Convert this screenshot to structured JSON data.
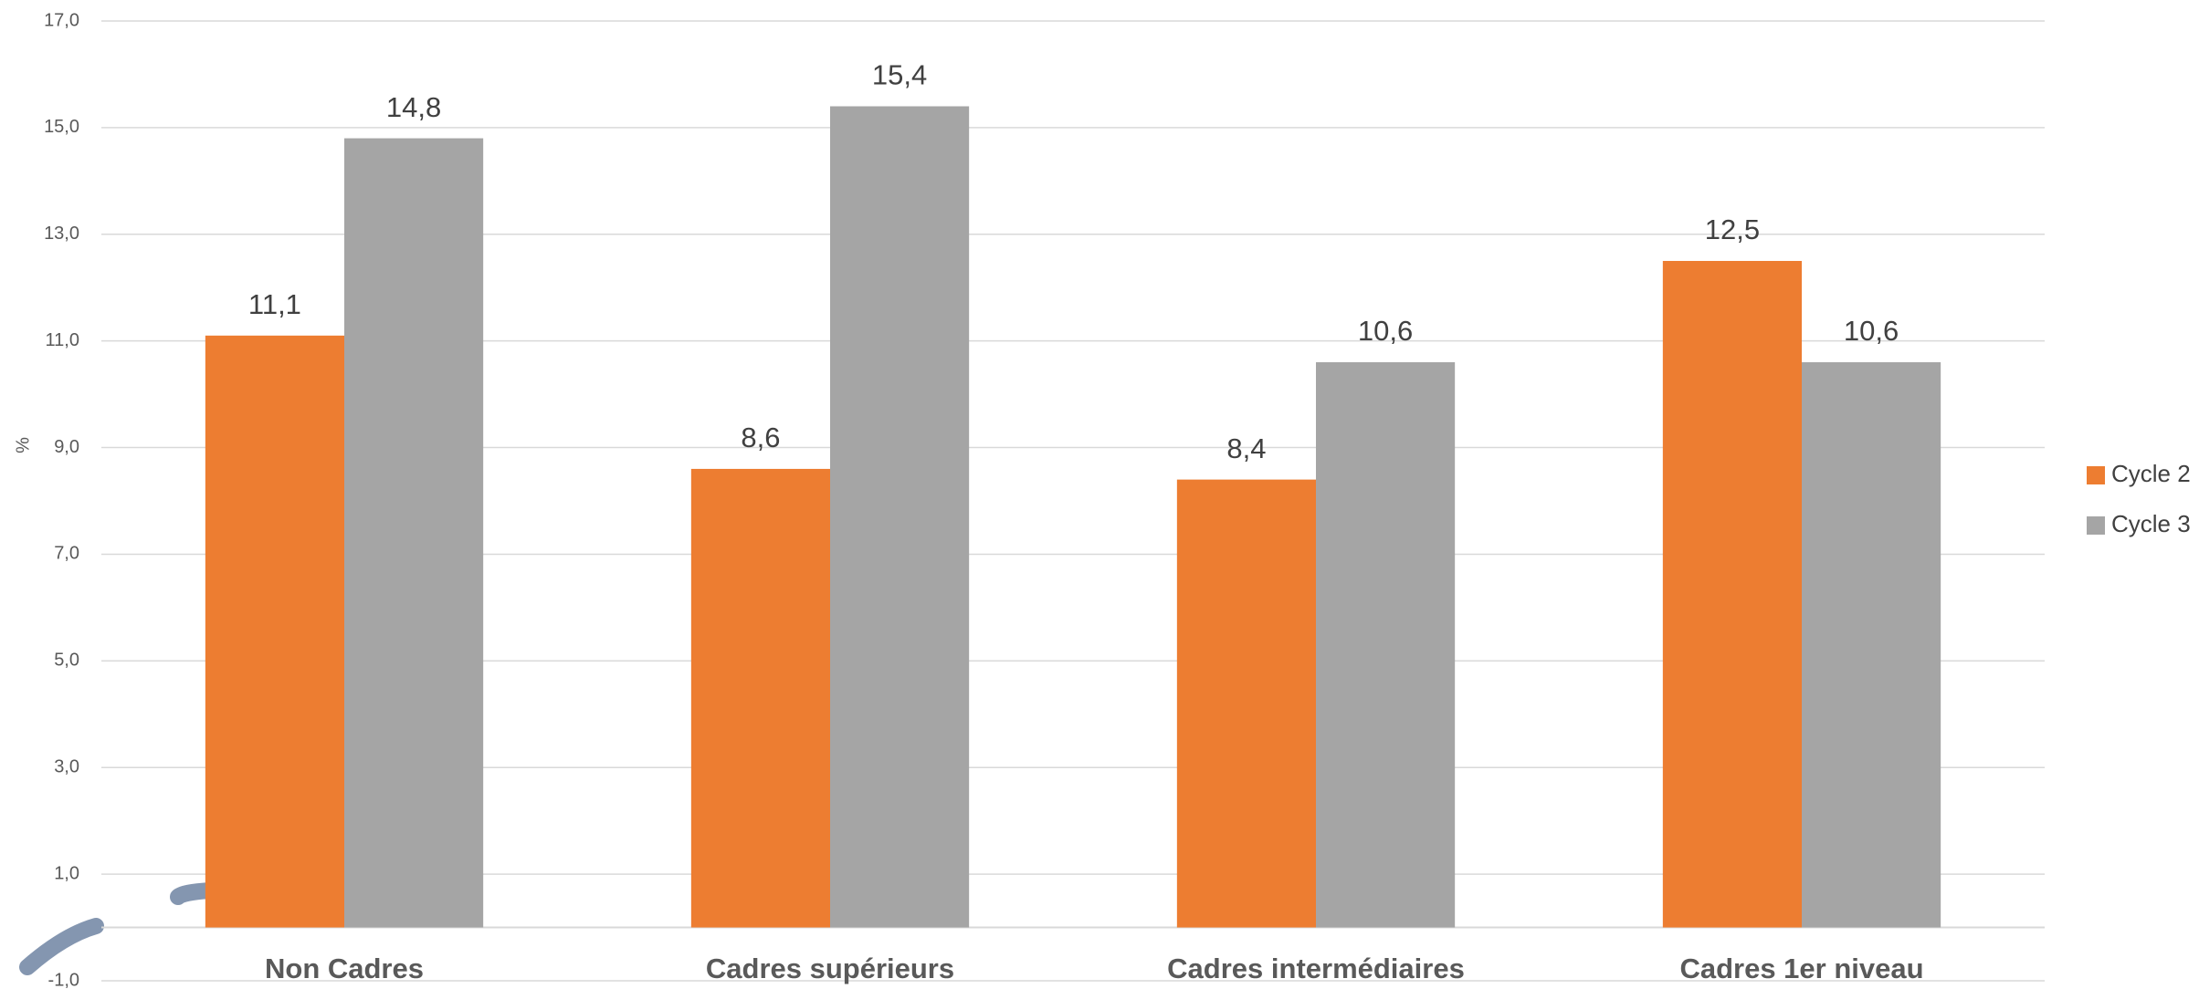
{
  "chart_data": {
    "type": "bar",
    "y_label": "%",
    "categories": [
      "Non Cadres",
      "Cadres supérieurs",
      "Cadres intermédiaires",
      "Cadres 1er niveau"
    ],
    "series": [
      {
        "name": "Cycle 2",
        "color": "#ed7d31",
        "values": [
          11.1,
          8.6,
          8.4,
          12.5
        ],
        "value_labels": [
          "11,1",
          "8,6",
          "8,4",
          "12,5"
        ]
      },
      {
        "name": "Cycle 3",
        "color": "#a5a5a5",
        "values": [
          14.8,
          15.4,
          10.6,
          10.6
        ],
        "value_labels": [
          "14,8",
          "15,4",
          "10,6",
          "10,6"
        ]
      }
    ],
    "ylim": [
      -1,
      17
    ],
    "yticks": [
      {
        "value": -1,
        "label": "-1,0"
      },
      {
        "value": 1,
        "label": "1,0"
      },
      {
        "value": 3,
        "label": "3,0"
      },
      {
        "value": 5,
        "label": "5,0"
      },
      {
        "value": 7,
        "label": "7,0"
      },
      {
        "value": 9,
        "label": "9,0"
      },
      {
        "value": 11,
        "label": "11,0"
      },
      {
        "value": 13,
        "label": "13,0"
      },
      {
        "value": 15,
        "label": "15,0"
      },
      {
        "value": 17,
        "label": "17,0"
      }
    ],
    "grid": true,
    "legend": "right"
  }
}
